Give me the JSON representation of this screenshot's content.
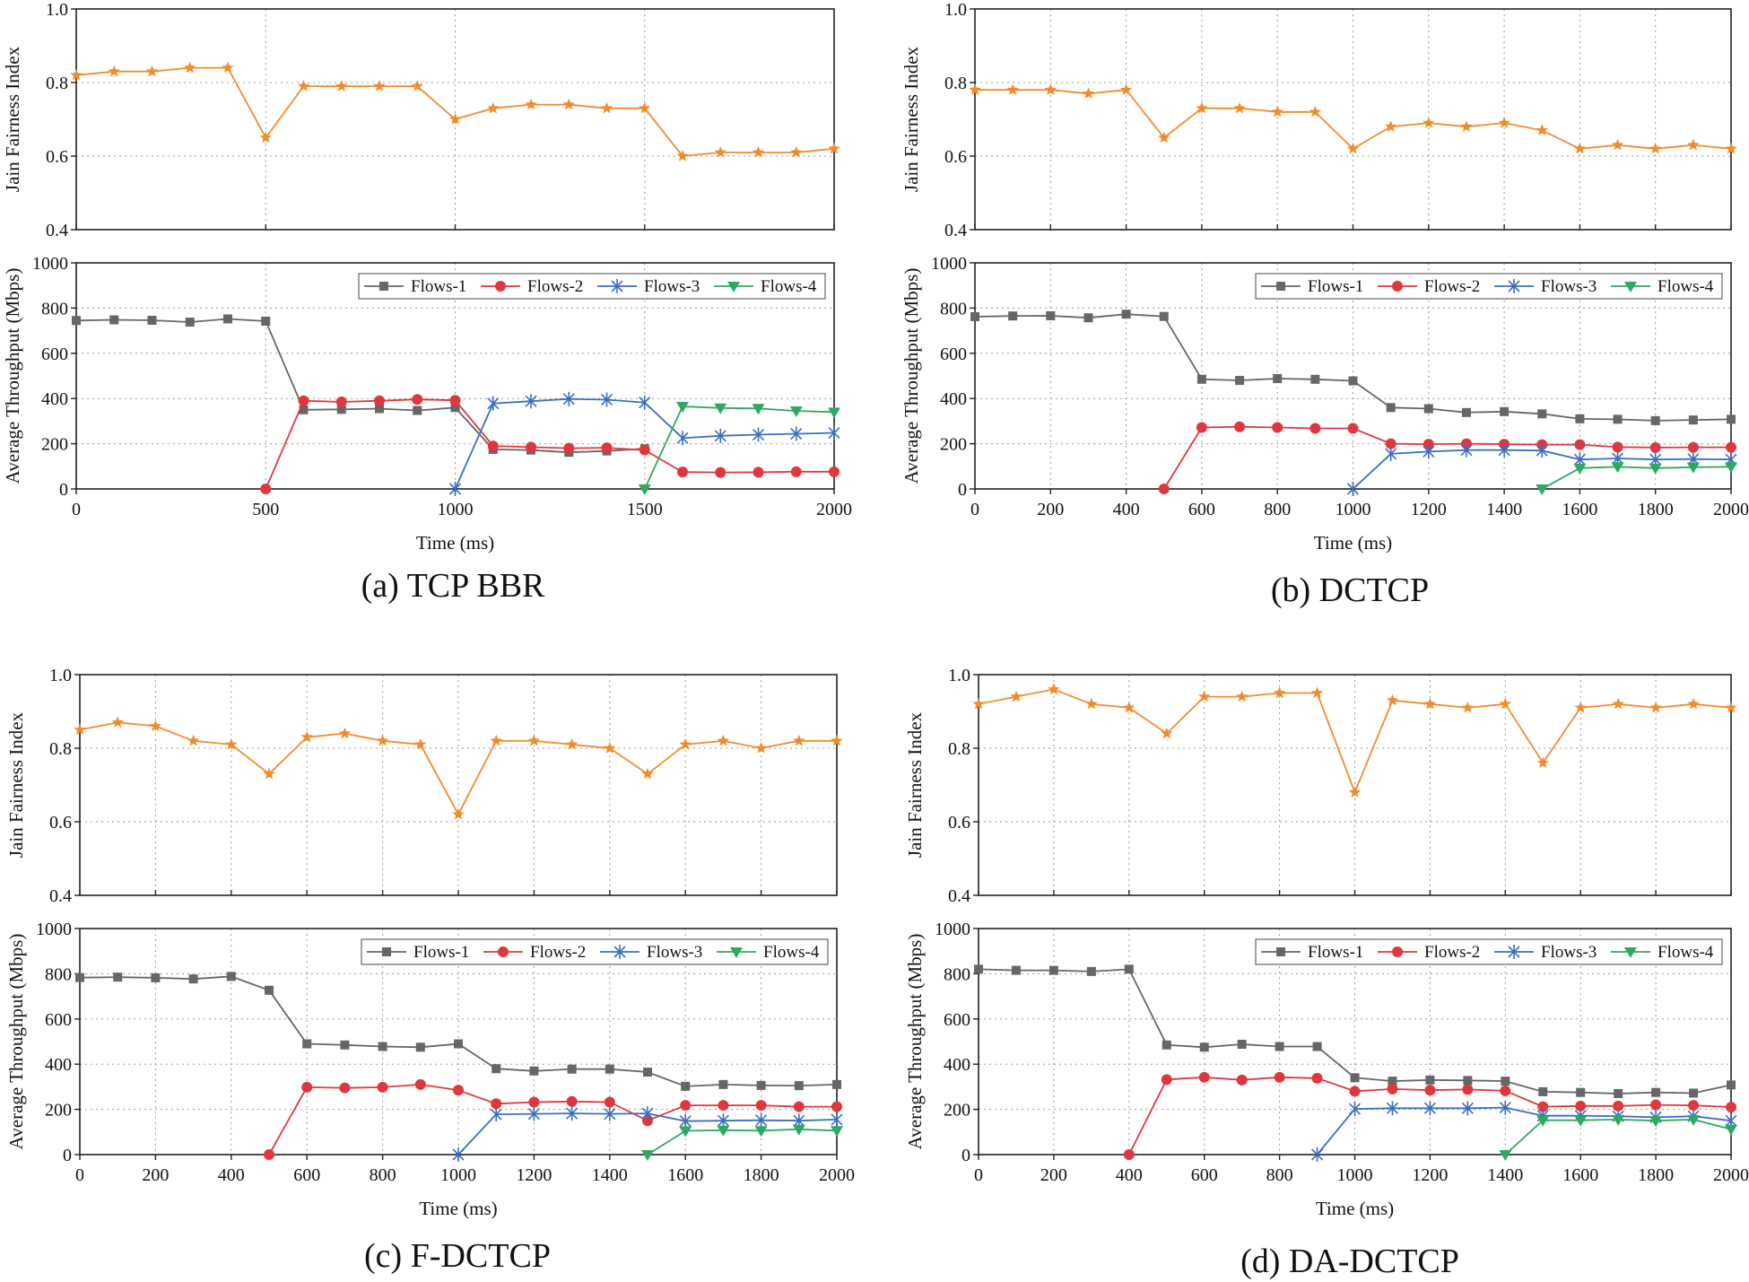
{
  "colors": {
    "fairness": "#F08C2E",
    "Flows-1": "#666666",
    "Flows-2": "#E0373F",
    "Flows-3": "#3A6FBF",
    "Flows-4": "#2EAA60"
  },
  "chart_data": [
    {
      "type": "line",
      "caption": "(a) TCP BBR",
      "fairness": {
        "ylabel": "Jain Fairness Index",
        "ylim": [
          0.4,
          1.0
        ],
        "yticks": [
          "0.4",
          "0.6",
          "0.8",
          "1.0"
        ],
        "x": [
          0,
          100,
          200,
          300,
          400,
          500,
          600,
          700,
          800,
          900,
          1000,
          1100,
          1200,
          1300,
          1400,
          1500,
          1600,
          1700,
          1800,
          1900,
          2000
        ],
        "values": [
          0.82,
          0.83,
          0.83,
          0.84,
          0.84,
          0.65,
          0.79,
          0.79,
          0.79,
          0.79,
          0.7,
          0.73,
          0.74,
          0.74,
          0.73,
          0.73,
          0.6,
          0.61,
          0.61,
          0.61,
          0.62
        ]
      },
      "throughput": {
        "ylabel": "Average Throughput (Mbps)",
        "xlabel": "Time (ms)",
        "xlim": [
          0,
          2000
        ],
        "ylim": [
          0,
          1000
        ],
        "xticks": [
          "0",
          "500",
          "1000",
          "1500",
          "2000"
        ],
        "yticks": [
          "0",
          "200",
          "400",
          "600",
          "800",
          "1000"
        ],
        "series": [
          {
            "name": "Flows-1",
            "x": [
              0,
              100,
              200,
              300,
              400,
              500,
              600,
              700,
              800,
              900,
              1000,
              1100,
              1200,
              1300,
              1400,
              1500
            ],
            "values": [
              745,
              748,
              746,
              738,
              752,
              742,
              350,
              352,
              355,
              347,
              360,
              175,
              172,
              162,
              168,
              178
            ]
          },
          {
            "name": "Flows-2",
            "x": [
              500,
              600,
              700,
              800,
              900,
              1000,
              1100,
              1200,
              1300,
              1400,
              1500,
              1600,
              1700,
              1800,
              1900,
              2000
            ],
            "values": [
              0,
              390,
              385,
              390,
              396,
              392,
              190,
              185,
              180,
              182,
              172,
              75,
              73,
              74,
              76,
              76
            ]
          },
          {
            "name": "Flows-3",
            "x": [
              1000,
              1100,
              1200,
              1300,
              1400,
              1500,
              1600,
              1700,
              1800,
              1900,
              2000
            ],
            "values": [
              0,
              378,
              388,
              398,
              395,
              382,
              225,
              235,
              240,
              244,
              248
            ]
          },
          {
            "name": "Flows-4",
            "x": [
              1500,
              1600,
              1700,
              1800,
              1900,
              2000
            ],
            "values": [
              0,
              365,
              358,
              356,
              345,
              340
            ]
          }
        ]
      }
    },
    {
      "type": "line",
      "caption": "(b) DCTCP",
      "fairness": {
        "ylabel": "Jain Fairness Index",
        "ylim": [
          0.4,
          1.0
        ],
        "yticks": [
          "0.4",
          "0.6",
          "0.8",
          "1.0"
        ],
        "x": [
          0,
          100,
          200,
          300,
          400,
          500,
          600,
          700,
          800,
          900,
          1000,
          1100,
          1200,
          1300,
          1400,
          1500,
          1600,
          1700,
          1800,
          1900,
          2000
        ],
        "values": [
          0.78,
          0.78,
          0.78,
          0.77,
          0.78,
          0.65,
          0.73,
          0.73,
          0.72,
          0.72,
          0.62,
          0.68,
          0.69,
          0.68,
          0.69,
          0.67,
          0.62,
          0.63,
          0.62,
          0.63,
          0.62
        ]
      },
      "throughput": {
        "ylabel": "Average Throughput (Mbps)",
        "xlabel": "Time (ms)",
        "xlim": [
          0,
          2000
        ],
        "ylim": [
          0,
          1000
        ],
        "xticks": [
          "0",
          "200",
          "400",
          "600",
          "800",
          "1000",
          "1200",
          "1400",
          "1600",
          "1800",
          "2000"
        ],
        "yticks": [
          "0",
          "200",
          "400",
          "600",
          "800",
          "1000"
        ],
        "series": [
          {
            "name": "Flows-1",
            "x": [
              0,
              100,
              200,
              300,
              400,
              500,
              600,
              700,
              800,
              900,
              1000,
              1100,
              1200,
              1300,
              1400,
              1500,
              1600,
              1700,
              1800,
              1900,
              2000
            ],
            "values": [
              762,
              765,
              766,
              757,
              773,
              763,
              485,
              480,
              488,
              485,
              478,
              360,
              355,
              338,
              342,
              332,
              310,
              308,
              302,
              305,
              308
            ]
          },
          {
            "name": "Flows-2",
            "x": [
              500,
              600,
              700,
              800,
              900,
              1000,
              1100,
              1200,
              1300,
              1400,
              1500,
              1600,
              1700,
              1800,
              1900,
              2000
            ],
            "values": [
              0,
              272,
              275,
              272,
              268,
              268,
              200,
              198,
              200,
              198,
              196,
              196,
              185,
              183,
              184,
              184
            ]
          },
          {
            "name": "Flows-3",
            "x": [
              1000,
              1100,
              1200,
              1300,
              1400,
              1500,
              1600,
              1700,
              1800,
              1900,
              2000
            ],
            "values": [
              0,
              155,
              165,
              172,
              172,
              170,
              130,
              135,
              130,
              132,
              130
            ]
          },
          {
            "name": "Flows-4",
            "x": [
              1500,
              1600,
              1700,
              1800,
              1900,
              2000
            ],
            "values": [
              0,
              92,
              98,
              92,
              96,
              98
            ]
          }
        ]
      }
    },
    {
      "type": "line",
      "caption": "(c) F-DCTCP",
      "fairness": {
        "ylabel": "Jain Fairness Index",
        "ylim": [
          0.4,
          1.0
        ],
        "yticks": [
          "0.4",
          "0.6",
          "0.8",
          "1.0"
        ],
        "x": [
          0,
          100,
          200,
          300,
          400,
          500,
          600,
          700,
          800,
          900,
          1000,
          1100,
          1200,
          1300,
          1400,
          1500,
          1600,
          1700,
          1800,
          1900,
          2000
        ],
        "values": [
          0.85,
          0.87,
          0.86,
          0.82,
          0.81,
          0.73,
          0.83,
          0.84,
          0.82,
          0.81,
          0.62,
          0.82,
          0.82,
          0.81,
          0.8,
          0.73,
          0.81,
          0.82,
          0.8,
          0.82,
          0.82
        ]
      },
      "throughput": {
        "ylabel": "Average Throughput (Mbps)",
        "xlabel": "Time (ms)",
        "xlim": [
          0,
          2000
        ],
        "ylim": [
          0,
          1000
        ],
        "xticks": [
          "0",
          "200",
          "400",
          "600",
          "800",
          "1000",
          "1200",
          "1400",
          "1600",
          "1800",
          "2000"
        ],
        "yticks": [
          "0",
          "200",
          "400",
          "600",
          "800",
          "1000"
        ],
        "series": [
          {
            "name": "Flows-1",
            "x": [
              0,
              100,
              200,
              300,
              400,
              500,
              600,
              700,
              800,
              900,
              1000,
              1100,
              1200,
              1300,
              1400,
              1500,
              1600,
              1700,
              1800,
              1900,
              2000
            ],
            "values": [
              783,
              785,
              782,
              777,
              788,
              727,
              490,
              485,
              478,
              475,
              490,
              380,
              370,
              378,
              378,
              365,
              302,
              310,
              306,
              305,
              310
            ]
          },
          {
            "name": "Flows-2",
            "x": [
              500,
              600,
              700,
              800,
              900,
              1000,
              1100,
              1200,
              1300,
              1400,
              1500,
              1600,
              1700,
              1800,
              1900,
              2000
            ],
            "values": [
              0,
              298,
              295,
              298,
              310,
              285,
              225,
              232,
              235,
              232,
              150,
              218,
              218,
              218,
              212,
              212
            ]
          },
          {
            "name": "Flows-3",
            "x": [
              1000,
              1100,
              1200,
              1300,
              1400,
              1500,
              1600,
              1700,
              1800,
              1900,
              2000
            ],
            "values": [
              0,
              178,
              180,
              182,
              180,
              182,
              148,
              150,
              152,
              150,
              155
            ]
          },
          {
            "name": "Flows-4",
            "x": [
              1500,
              1600,
              1700,
              1800,
              1900,
              2000
            ],
            "values": [
              0,
              105,
              108,
              106,
              112,
              106
            ]
          }
        ]
      }
    },
    {
      "type": "line",
      "caption": "(d) DA-DCTCP",
      "fairness": {
        "ylabel": "Jain Fairness Index",
        "ylim": [
          0.4,
          1.0
        ],
        "yticks": [
          "0.4",
          "0.6",
          "0.8",
          "1.0"
        ],
        "x": [
          0,
          100,
          200,
          300,
          400,
          500,
          600,
          700,
          800,
          900,
          1000,
          1100,
          1200,
          1300,
          1400,
          1500,
          1600,
          1700,
          1800,
          1900,
          2000
        ],
        "values": [
          0.92,
          0.94,
          0.96,
          0.92,
          0.91,
          0.84,
          0.94,
          0.94,
          0.95,
          0.95,
          0.68,
          0.93,
          0.92,
          0.91,
          0.92,
          0.76,
          0.91,
          0.92,
          0.91,
          0.92,
          0.91
        ]
      },
      "throughput": {
        "ylabel": "Average Throughput (Mbps)",
        "xlabel": "Time (ms)",
        "xlim": [
          0,
          2000
        ],
        "ylim": [
          0,
          1000
        ],
        "xticks": [
          "0",
          "200",
          "400",
          "600",
          "800",
          "1000",
          "1200",
          "1400",
          "1600",
          "1800",
          "2000"
        ],
        "yticks": [
          "0",
          "200",
          "400",
          "600",
          "800",
          "1000"
        ],
        "series": [
          {
            "name": "Flows-1",
            "x": [
              0,
              100,
              200,
              300,
              400,
              500,
              600,
              700,
              800,
              900,
              1000,
              1100,
              1200,
              1300,
              1400,
              1500,
              1600,
              1700,
              1800,
              1900,
              2000
            ],
            "values": [
              820,
              815,
              815,
              810,
              820,
              485,
              475,
              488,
              478,
              478,
              340,
              325,
              330,
              328,
              325,
              278,
              275,
              270,
              275,
              272,
              308
            ]
          },
          {
            "name": "Flows-2",
            "x": [
              400,
              500,
              600,
              700,
              800,
              900,
              1000,
              1100,
              1200,
              1300,
              1400,
              1500,
              1600,
              1700,
              1800,
              1900,
              2000
            ],
            "values": [
              0,
              332,
              342,
              330,
              342,
              338,
              280,
              290,
              285,
              288,
              282,
              212,
              215,
              215,
              220,
              218,
              210
            ]
          },
          {
            "name": "Flows-3",
            "x": [
              900,
              1000,
              1100,
              1200,
              1300,
              1400,
              1500,
              1600,
              1700,
              1800,
              1900,
              2000
            ],
            "values": [
              0,
              202,
              205,
              205,
              205,
              208,
              172,
              172,
              170,
              165,
              170,
              150
            ]
          },
          {
            "name": "Flows-4",
            "x": [
              1400,
              1500,
              1600,
              1700,
              1800,
              1900,
              2000
            ],
            "values": [
              0,
              152,
              152,
              155,
              150,
              155,
              112
            ]
          }
        ]
      }
    }
  ]
}
